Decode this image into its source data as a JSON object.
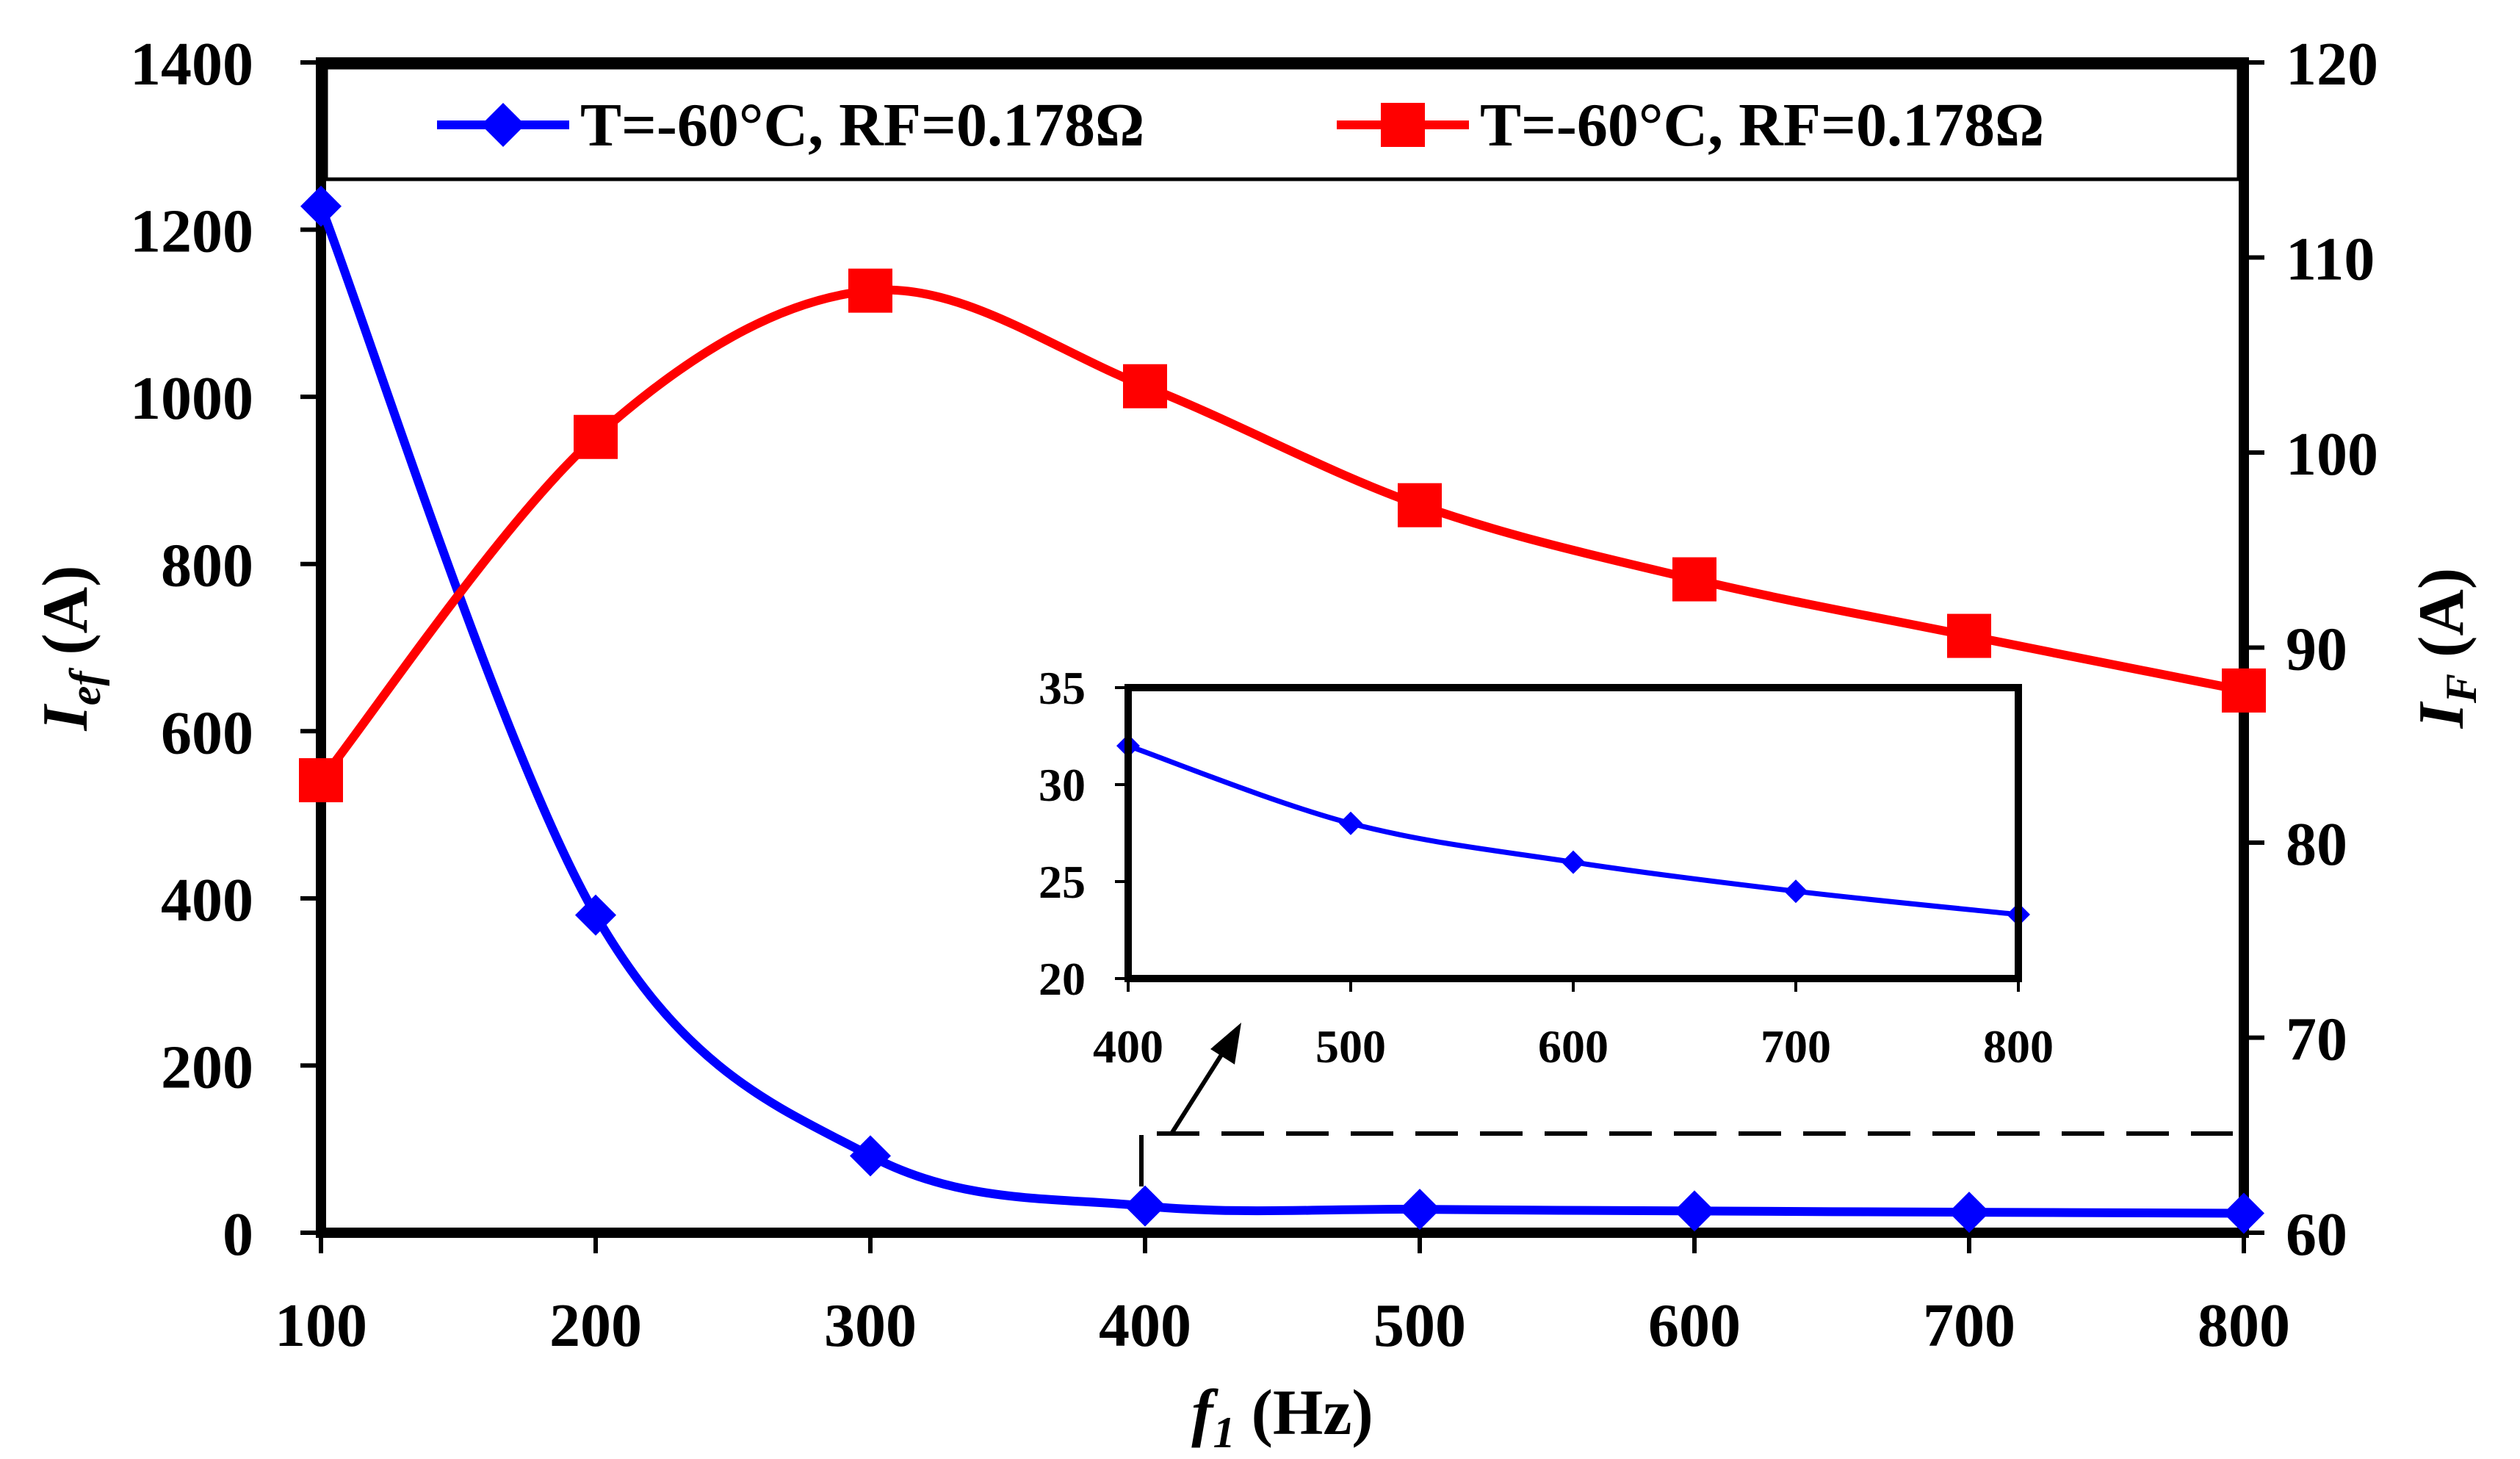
{
  "chart_data": {
    "type": "line",
    "x_axis": {
      "label_var": "f",
      "label_sub": "1",
      "label_unit": " (Hz)",
      "range": [
        100,
        800
      ],
      "ticks": [
        "100",
        "200",
        "300",
        "400",
        "500",
        "600",
        "700",
        "800"
      ]
    },
    "y_left": {
      "label_var": "I",
      "label_sub": "ef",
      "label_unit": " (A)",
      "range": [
        0,
        1400
      ],
      "ticks": [
        "0",
        "200",
        "400",
        "600",
        "800",
        "1000",
        "1200",
        "1400"
      ]
    },
    "y_right": {
      "label_var": "I",
      "label_sub": "F",
      "label_unit": " (A)",
      "range": [
        60,
        120
      ],
      "ticks": [
        "60",
        "70",
        "80",
        "90",
        "100",
        "110",
        "120"
      ]
    },
    "series": [
      {
        "name": "T=-60°C, RF=0.178Ω",
        "axis": "left",
        "color": "#0000ff",
        "marker": "diamond",
        "x": [
          100,
          200,
          300,
          400,
          500,
          600,
          700,
          800
        ],
        "values": [
          1228,
          380,
          92,
          32,
          28,
          26,
          24.5,
          23.3
        ]
      },
      {
        "name": "T=-60°C, RF=0.178Ω",
        "axis": "right",
        "color": "#ff0000",
        "marker": "square",
        "x": [
          100,
          200,
          300,
          400,
          500,
          600,
          700,
          800
        ],
        "values": [
          83.2,
          100.8,
          108.3,
          103.4,
          97.3,
          93.5,
          90.6,
          87.8
        ]
      }
    ],
    "inset": {
      "x_range": [
        400,
        800
      ],
      "y_range": [
        20,
        35
      ],
      "x_ticks": [
        "400",
        "500",
        "600",
        "700",
        "800"
      ],
      "y_ticks": [
        "20",
        "25",
        "30",
        "35"
      ],
      "series_index": 0
    },
    "legend_position": "top"
  }
}
